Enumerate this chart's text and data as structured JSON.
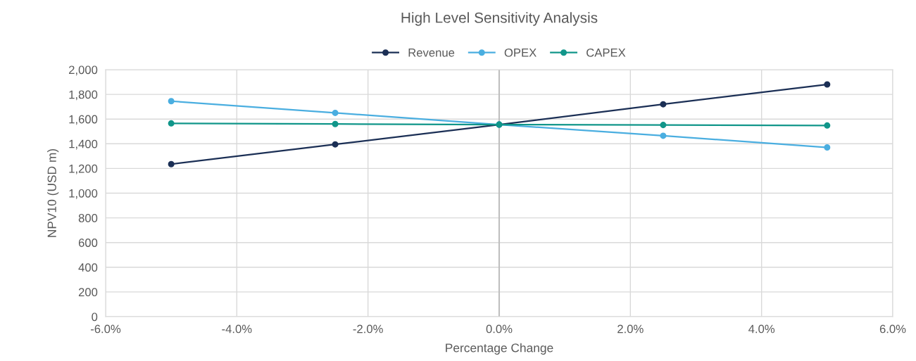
{
  "chart_data": {
    "type": "line",
    "title": "High Level Sensitivity Analysis",
    "xlabel": "Percentage Change",
    "ylabel": "NPV10 (USD m)",
    "x": [
      -5.0,
      -2.5,
      0.0,
      2.5,
      5.0
    ],
    "series": [
      {
        "name": "Revenue",
        "color": "#1b2f55",
        "values": [
          1235,
          1395,
          1555,
          1720,
          1880
        ]
      },
      {
        "name": "OPEX",
        "color": "#4aaee0",
        "values": [
          1745,
          1650,
          1555,
          1465,
          1370
        ]
      },
      {
        "name": "CAPEX",
        "color": "#11968a",
        "values": [
          1565,
          1560,
          1555,
          1552,
          1548
        ]
      }
    ],
    "xlim": [
      -6,
      6
    ],
    "xticks": [
      {
        "value": -6,
        "label": "-6.0%"
      },
      {
        "value": -4,
        "label": "-4.0%"
      },
      {
        "value": -2,
        "label": "-2.0%"
      },
      {
        "value": 0,
        "label": "0.0%"
      },
      {
        "value": 2,
        "label": "2.0%"
      },
      {
        "value": 4,
        "label": "4.0%"
      },
      {
        "value": 6,
        "label": "6.0%"
      }
    ],
    "ylim": [
      0,
      2000
    ],
    "yticks": [
      0,
      200,
      400,
      600,
      800,
      {
        "value": 1000,
        "label": "1,000"
      },
      {
        "value": 1200,
        "label": "1,200"
      },
      {
        "value": 1400,
        "label": "1,400"
      },
      {
        "value": 1600,
        "label": "1,600"
      },
      {
        "value": 1800,
        "label": "1,800"
      },
      {
        "value": 2000,
        "label": "2,000"
      }
    ],
    "ref_lines": [
      {
        "axis": "x",
        "value": 0,
        "color": "#bfbfbf"
      }
    ],
    "grid": true,
    "legend": "top",
    "marker": "circle",
    "line_style": "solid"
  }
}
